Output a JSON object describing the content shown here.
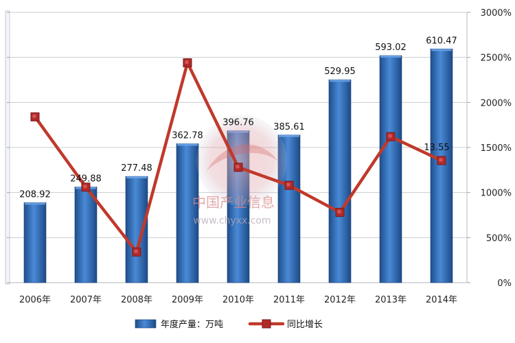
{
  "chart_data": {
    "type": "bar",
    "categories": [
      "2006年",
      "2007年",
      "2008年",
      "2009年",
      "2010年",
      "2011年",
      "2012年",
      "2013年",
      "2014年"
    ],
    "series": [
      {
        "name": "年度产量：万吨",
        "type": "bar",
        "axis": "left",
        "values": [
          208.92,
          249.88,
          277.48,
          362.78,
          396.76,
          385.61,
          529.95,
          593.02,
          610.47
        ],
        "labels": [
          "208.92",
          "249.88",
          "277.48",
          "362.78",
          "396.76",
          "385.61",
          "529.95",
          "593.02",
          "610.47"
        ],
        "color": "#2f6fb8"
      },
      {
        "name": "同比增长",
        "type": "line",
        "axis": "right",
        "values": [
          1840,
          1060,
          340,
          2440,
          1280,
          1080,
          780,
          1620,
          1355
        ],
        "annotation": "13.55",
        "color": "#c0392b"
      }
    ],
    "left_axis": {
      "ylim": [
        0,
        3000
      ],
      "ticks": [
        "0",
        "500",
        "1000",
        "1500",
        "2000",
        "2500",
        "3000"
      ],
      "gridlines": true
    },
    "right_axis": {
      "ylim": [
        0,
        3000
      ],
      "ticks": [
        "0%",
        "500%",
        "1000%",
        "1500%",
        "2000%",
        "2500%",
        "3000%"
      ]
    },
    "legend": {
      "placement": "bottom"
    },
    "watermark": {
      "text": "中国产业信息",
      "url": "www.chyxx.com"
    }
  }
}
